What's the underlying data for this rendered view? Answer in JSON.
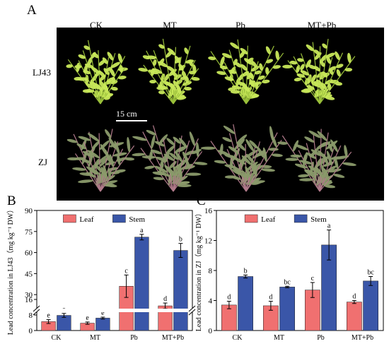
{
  "panel_a": {
    "letter": "A",
    "columns": [
      "CK",
      "MT",
      "Pb",
      "MT+Pb"
    ],
    "rows": [
      "LJ43",
      "ZJ"
    ],
    "scale_bar": "15 cm"
  },
  "colors": {
    "leaf": "#f07070",
    "stem": "#3a56a8",
    "lj43_plant": "#c8e85a",
    "zj_plant": "#8a9a6a"
  },
  "chart_data": [
    {
      "panel": "B",
      "type": "bar",
      "categories": [
        "CK",
        "MT",
        "Pb",
        "MT+Pb"
      ],
      "series": [
        {
          "name": "Leaf",
          "values": [
            4.6,
            3.8,
            36.0,
            22.0
          ],
          "errors": [
            1.0,
            0.6,
            8.0,
            2.0
          ],
          "letters": [
            "e",
            "e",
            "c",
            "d"
          ]
        },
        {
          "name": "Stem",
          "values": [
            7.8,
            6.4,
            71.0,
            61.5
          ],
          "errors": [
            1.0,
            0.5,
            2.0,
            5.0
          ],
          "letters": [
            "e",
            "e",
            "a",
            "b"
          ]
        }
      ],
      "ylabel": "Lead concentration in LJ43（mg kg⁻¹ DW）",
      "ylim": [
        0,
        90
      ],
      "axis_break": [
        16,
        18
      ],
      "lower_ticks": [
        0,
        8,
        16
      ],
      "upper_ticks": [
        30,
        45,
        60,
        75,
        90
      ],
      "legend": "top"
    },
    {
      "panel": "C",
      "type": "bar",
      "categories": [
        "CK",
        "MT",
        "Pb",
        "MT+Pb"
      ],
      "series": [
        {
          "name": "Leaf",
          "values": [
            3.4,
            3.3,
            5.4,
            3.8
          ],
          "errors": [
            0.5,
            0.6,
            1.0,
            0.2
          ],
          "letters": [
            "d",
            "d",
            "c",
            "d"
          ]
        },
        {
          "name": "Stem",
          "values": [
            7.2,
            5.8,
            11.4,
            6.6
          ],
          "errors": [
            0.2,
            0.1,
            2.0,
            0.6
          ],
          "letters": [
            "b",
            "bc",
            "a",
            "bc"
          ]
        }
      ],
      "ylabel": "Lead concentration in ZJ（mg kg⁻¹ DW）",
      "ylim": [
        0,
        16
      ],
      "ticks": [
        0,
        4,
        8,
        12,
        16
      ],
      "legend": "top"
    }
  ]
}
